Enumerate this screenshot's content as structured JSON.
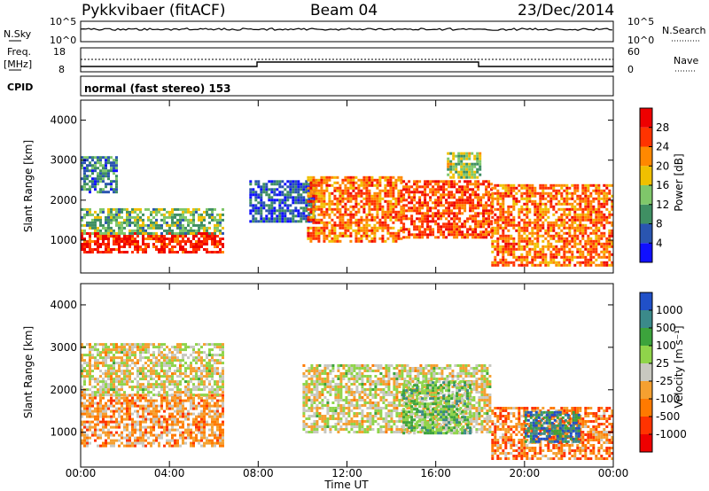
{
  "header": {
    "radar": "Pykkvibaer (fitACF)",
    "beam": "Beam 04",
    "date": "23/Dec/2014"
  },
  "strip_nsky": {
    "left_label": "N.Sky",
    "left_ticks": [
      "10^5",
      "10^0"
    ],
    "right_label": "N.Search",
    "right_ticks": [
      "10^5",
      "10^0"
    ]
  },
  "strip_freq": {
    "left_label_top": "Freq.",
    "left_label_bottom": "[MHz]",
    "left_ticks": [
      "18",
      "8"
    ],
    "right_label": "Nave",
    "right_ticks": [
      "60",
      "0"
    ]
  },
  "strip_cpid": {
    "left_label": "CPID",
    "text": "normal (fast stereo) 153"
  },
  "colors": {
    "power": [
      "#1010ff",
      "#2a55b0",
      "#3f8f63",
      "#7fc76a",
      "#f0c000",
      "#ff8800",
      "#ff3300",
      "#ee0000"
    ],
    "velocity": [
      "#2050c8",
      "#3b8a8a",
      "#3ca33c",
      "#8fd44a",
      "#c8c8c0",
      "#f5a030",
      "#ff7a00",
      "#ff3300",
      "#ee0000"
    ]
  },
  "chart_data": [
    {
      "type": "heatmap",
      "name": "power",
      "ylabel": "Slant Range [km]",
      "ylim": [
        180,
        4500
      ],
      "yticks": [
        "1000",
        "2000",
        "3000",
        "4000"
      ],
      "xlim": [
        "00:00",
        "24:00"
      ],
      "colorbar_label": "Power [dB]",
      "colorbar_ticks": [
        "4",
        "8",
        "12",
        "16",
        "20",
        "24",
        "28"
      ],
      "value_range": [
        0,
        30
      ],
      "regions": [
        {
          "t": [
            0.0,
            6.4
          ],
          "r": [
            700,
            1200
          ],
          "value": 26
        },
        {
          "t": [
            0.0,
            6.4
          ],
          "r": [
            1200,
            1800
          ],
          "value": 12
        },
        {
          "t": [
            0.0,
            1.6
          ],
          "r": [
            2200,
            3100
          ],
          "value": 8
        },
        {
          "t": [
            7.6,
            10.5
          ],
          "r": [
            1500,
            2500
          ],
          "value": 6
        },
        {
          "t": [
            10.2,
            14.5
          ],
          "r": [
            1000,
            2600
          ],
          "value": 22
        },
        {
          "t": [
            14.5,
            18.5
          ],
          "r": [
            1100,
            2500
          ],
          "value": 24
        },
        {
          "t": [
            18.5,
            24.0
          ],
          "r": [
            400,
            2400
          ],
          "value": 22
        },
        {
          "t": [
            16.5,
            18.0
          ],
          "r": [
            2600,
            3200
          ],
          "value": 14
        }
      ]
    },
    {
      "type": "heatmap",
      "name": "velocity",
      "ylabel": "Slant Range [km]",
      "ylim": [
        180,
        4500
      ],
      "yticks": [
        "1000",
        "2000",
        "3000",
        "4000"
      ],
      "xlim": [
        "00:00",
        "24:00"
      ],
      "xticks": [
        "00:00",
        "04:00",
        "08:00",
        "12:00",
        "16:00",
        "20:00",
        "00:00"
      ],
      "xlabel": "Time UT",
      "colorbar_label": "Velocity [m s⁻¹]",
      "colorbar_ticks": [
        "1000",
        "500",
        "100",
        "25",
        "-25",
        "-100",
        "-500",
        "-1000"
      ],
      "value_range": [
        -1000,
        1000
      ],
      "regions": [
        {
          "t": [
            0.0,
            6.4
          ],
          "r": [
            700,
            1900
          ],
          "value": -300
        },
        {
          "t": [
            0.0,
            6.4
          ],
          "r": [
            1900,
            3100
          ],
          "value": 0
        },
        {
          "t": [
            10.0,
            18.5
          ],
          "r": [
            1000,
            2600
          ],
          "value": 0
        },
        {
          "t": [
            14.5,
            17.5
          ],
          "r": [
            1000,
            2200
          ],
          "value": 300
        },
        {
          "t": [
            18.5,
            24.0
          ],
          "r": [
            400,
            1600
          ],
          "value": -400
        },
        {
          "t": [
            20.0,
            22.5
          ],
          "r": [
            800,
            1500
          ],
          "value": 700
        }
      ]
    }
  ]
}
